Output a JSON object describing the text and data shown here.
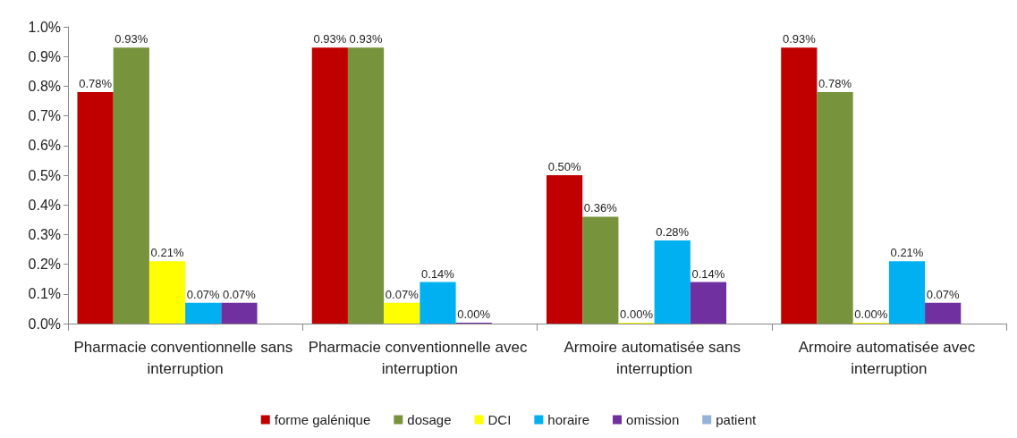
{
  "chart_data": {
    "type": "bar",
    "categories": [
      "Pharmacie conventionnelle sans interruption",
      "Pharmacie conventionnelle avec interruption",
      "Armoire automatisée sans interruption",
      "Armoire automatisée avec interruption"
    ],
    "series": [
      {
        "name": "forme galénique",
        "color": "#c00000",
        "values": [
          0.78,
          0.93,
          0.5,
          0.93
        ],
        "value_labels": [
          "0.78%",
          "0.93%",
          "0.50%",
          "0.93%"
        ]
      },
      {
        "name": "dosage",
        "color": "#77933c",
        "values": [
          0.93,
          0.93,
          0.36,
          0.78
        ],
        "value_labels": [
          "0.93%",
          "0.93%",
          "0.36%",
          "0.78%"
        ]
      },
      {
        "name": "DCI",
        "color": "#ffff00",
        "values": [
          0.21,
          0.07,
          0.0,
          0.0
        ],
        "value_labels": [
          "0.21%",
          "0.07%",
          "0.00%",
          "0.00%"
        ]
      },
      {
        "name": "horaire",
        "color": "#00b0f0",
        "values": [
          0.07,
          0.14,
          0.28,
          0.21
        ],
        "value_labels": [
          "0.07%",
          "0.14%",
          "0.28%",
          "0.21%"
        ]
      },
      {
        "name": "omission",
        "color": "#7030a0",
        "values": [
          0.07,
          0.0,
          0.14,
          0.07
        ],
        "value_labels": [
          "0.07%",
          "0.00%",
          "0.14%",
          "0.07%"
        ]
      },
      {
        "name": "patient",
        "color": "#95b3d7",
        "values": [
          null,
          null,
          null,
          null
        ]
      }
    ],
    "ylim": [
      0,
      1.0
    ],
    "yticks": [
      {
        "value": 0,
        "label": "0.0%"
      },
      {
        "value": 0.1,
        "label": "0.1%"
      },
      {
        "value": 0.2,
        "label": "0.2%"
      },
      {
        "value": 0.3,
        "label": "0.3%"
      },
      {
        "value": 0.4,
        "label": "0.4%"
      },
      {
        "value": 0.5,
        "label": "0.5%"
      },
      {
        "value": 0.6,
        "label": "0.6%"
      },
      {
        "value": 0.7,
        "label": "0.7%"
      },
      {
        "value": 0.8,
        "label": "0.8%"
      },
      {
        "value": 0.9,
        "label": "0.9%"
      },
      {
        "value": 1.0,
        "label": "1.0%"
      }
    ],
    "grid": false,
    "legend": "bottom"
  }
}
